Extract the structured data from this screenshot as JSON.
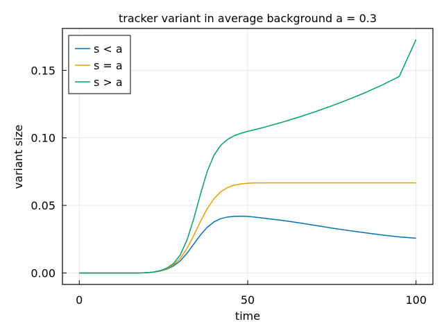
{
  "chart_data": {
    "type": "line",
    "title": "tracker variant in average background a = 0.3",
    "xlabel": "time",
    "ylabel": "variant size",
    "xlim": [
      -5,
      105
    ],
    "ylim": [
      -0.0085,
      0.181
    ],
    "xticks": [
      0,
      50,
      100
    ],
    "xtick_labels": [
      "0",
      "50",
      "100"
    ],
    "yticks": [
      0.0,
      0.05,
      0.1,
      0.15
    ],
    "ytick_labels": [
      "0.00",
      "0.05",
      "0.10",
      "0.15"
    ],
    "grid": true,
    "legend_position": "top-left",
    "x": [
      0,
      5,
      10,
      15,
      18,
      20,
      22,
      24,
      26,
      28,
      30,
      32,
      34,
      36,
      38,
      40,
      42,
      44,
      46,
      48,
      50,
      52,
      55,
      60,
      65,
      70,
      75,
      80,
      85,
      90,
      95,
      100
    ],
    "series": [
      {
        "name": "s < a",
        "color": "#0072b2",
        "values": [
          0.0,
          0.0,
          0.0,
          0.0,
          0.0,
          0.0002,
          0.0006,
          0.0014,
          0.0028,
          0.0052,
          0.009,
          0.0146,
          0.0214,
          0.0282,
          0.0338,
          0.0378,
          0.0402,
          0.0414,
          0.0419,
          0.042,
          0.0418,
          0.0414,
          0.0405,
          0.039,
          0.0372,
          0.0352,
          0.0332,
          0.0314,
          0.0297,
          0.0281,
          0.0267,
          0.0257
        ]
      },
      {
        "name": "s = a",
        "color": "#e69f00",
        "values": [
          0.0,
          0.0,
          0.0,
          0.0,
          0.0,
          0.0002,
          0.0006,
          0.0015,
          0.0031,
          0.006,
          0.0108,
          0.0182,
          0.0278,
          0.0382,
          0.0476,
          0.055,
          0.0601,
          0.0632,
          0.065,
          0.0659,
          0.0664,
          0.0666,
          0.0667,
          0.0667,
          0.0667,
          0.0667,
          0.0667,
          0.0667,
          0.0667,
          0.0667,
          0.0667,
          0.0667
        ]
      },
      {
        "name": "s > a",
        "color": "#009e73",
        "values": [
          0.0,
          0.0,
          0.0,
          0.0,
          0.0,
          0.0002,
          0.0007,
          0.0017,
          0.0036,
          0.007,
          0.0134,
          0.0245,
          0.0402,
          0.0585,
          0.0752,
          0.0872,
          0.0945,
          0.0988,
          0.1016,
          0.1034,
          0.1048,
          0.106,
          0.1079,
          0.1114,
          0.1152,
          0.1193,
          0.1237,
          0.1285,
          0.1336,
          0.1392,
          0.1454,
          0.1728
        ]
      }
    ]
  }
}
